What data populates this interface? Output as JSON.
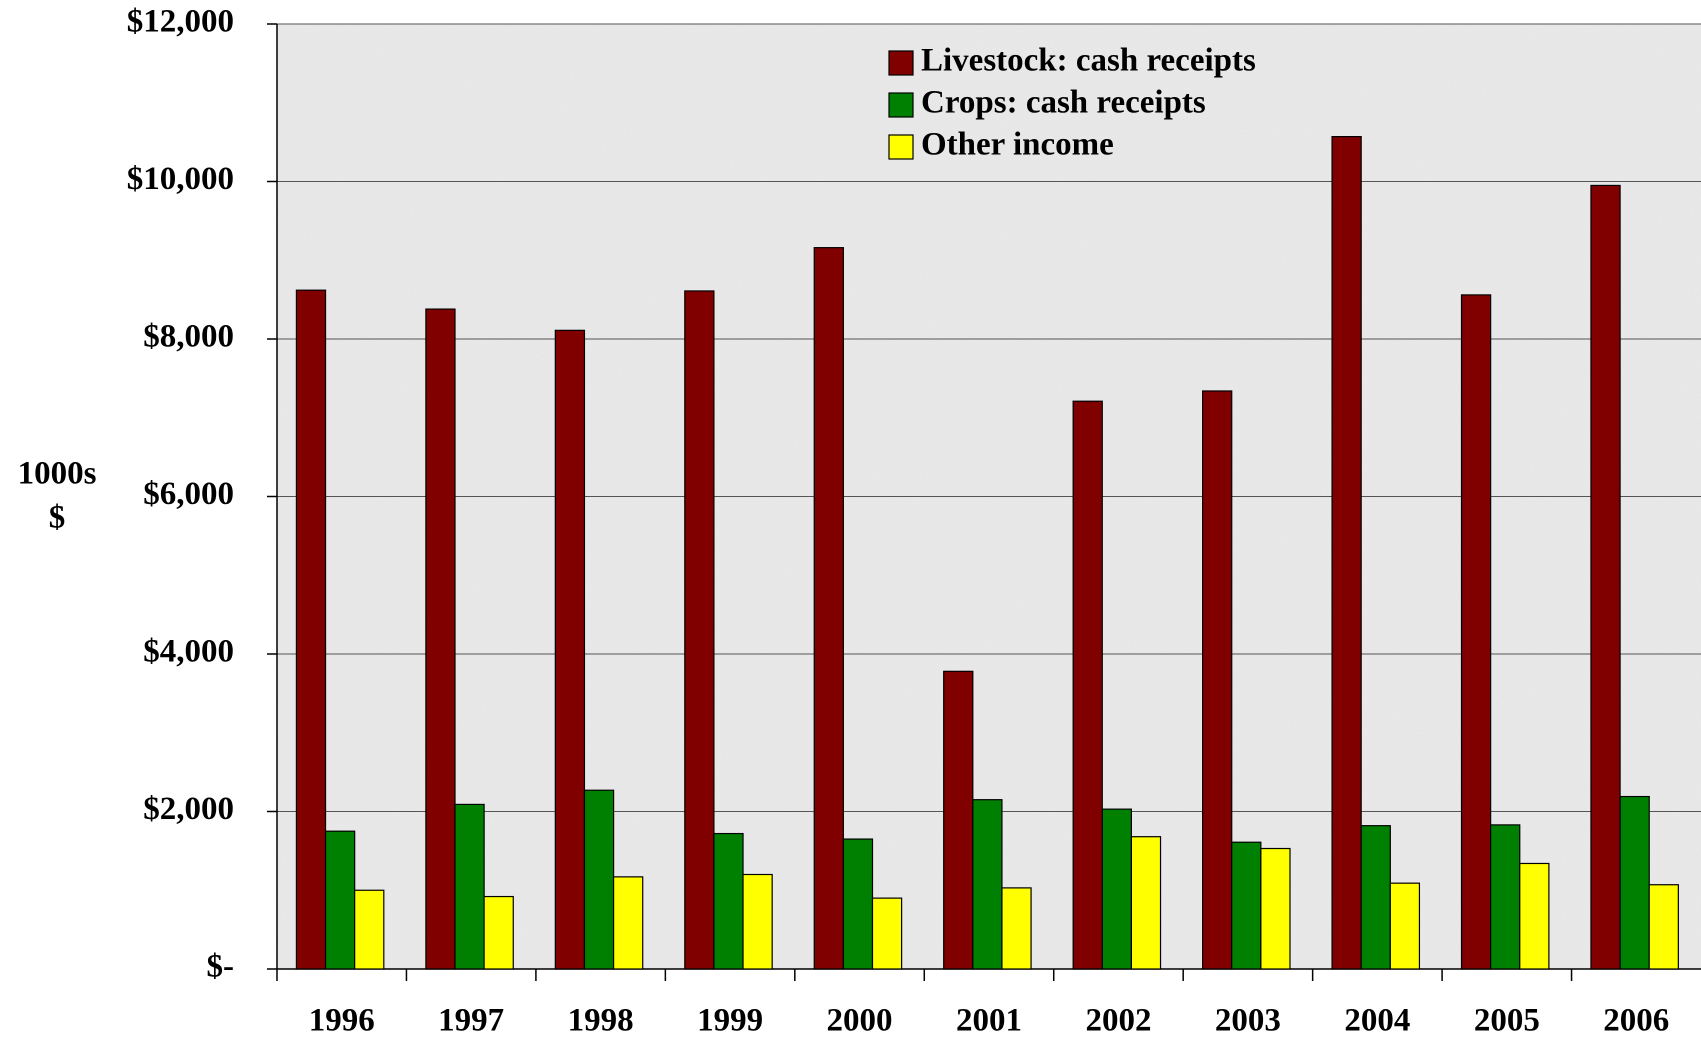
{
  "chart_data": {
    "type": "bar",
    "y_label": [
      "1000s",
      "$"
    ],
    "categories": [
      "1996",
      "1997",
      "1998",
      "1999",
      "2000",
      "2001",
      "2002",
      "2003",
      "2004",
      "2005",
      "2006"
    ],
    "series": [
      {
        "name": "Livestock: cash receipts",
        "color": "#800000",
        "values": [
          8620,
          8380,
          8110,
          8610,
          9160,
          3780,
          7210,
          7340,
          10570,
          8560,
          9950
        ]
      },
      {
        "name": "Crops: cash receipts",
        "color": "#008000",
        "values": [
          1750,
          2090,
          2270,
          1720,
          1650,
          2150,
          2030,
          1610,
          1820,
          1830,
          2190
        ]
      },
      {
        "name": "Other income",
        "color": "#ffff00",
        "values": [
          1000,
          920,
          1170,
          1200,
          900,
          1030,
          1680,
          1530,
          1090,
          1340,
          1070
        ]
      }
    ],
    "ylim": [
      0,
      12000
    ],
    "yticks": [
      {
        "value": 0,
        "label": "$-"
      },
      {
        "value": 2000,
        "label": "$2,000"
      },
      {
        "value": 4000,
        "label": "$4,000"
      },
      {
        "value": 6000,
        "label": "$6,000"
      },
      {
        "value": 8000,
        "label": "$8,000"
      },
      {
        "value": 10000,
        "label": "$10,000"
      },
      {
        "value": 12000,
        "label": "$12,000"
      }
    ],
    "grid": true,
    "legend": "top"
  }
}
